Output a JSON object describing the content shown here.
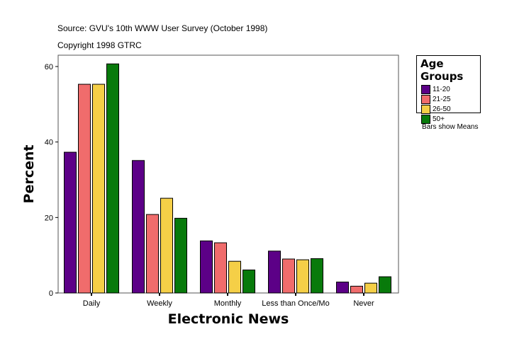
{
  "header": {
    "source": "Source: GVU's 10th WWW User Survey (October 1998)",
    "copyright": "Copyright 1998 GTRC"
  },
  "note": "Bars show Means",
  "chart_data": {
    "type": "bar",
    "title": "",
    "xlabel": "Electronic News",
    "ylabel": "Percent",
    "ylim": [
      0,
      63
    ],
    "yticks": [
      0,
      20,
      40,
      60
    ],
    "categories": [
      "Daily",
      "Weekly",
      "Monthly",
      "Less than Once/Mo",
      "Never"
    ],
    "legend_title": "Age Groups",
    "legend_position": "right",
    "series": [
      {
        "name": "11-20",
        "color": "#5c0087",
        "values": [
          37.3,
          35.1,
          13.8,
          11.1,
          2.9
        ]
      },
      {
        "name": "21-25",
        "color": "#f06c6c",
        "values": [
          55.3,
          20.8,
          13.3,
          9.0,
          1.8
        ]
      },
      {
        "name": "26-50",
        "color": "#f5cf47",
        "values": [
          55.3,
          25.1,
          8.4,
          8.8,
          2.6
        ]
      },
      {
        "name": "50+",
        "color": "#087a0b",
        "values": [
          60.7,
          19.8,
          6.1,
          9.1,
          4.3
        ]
      }
    ]
  }
}
